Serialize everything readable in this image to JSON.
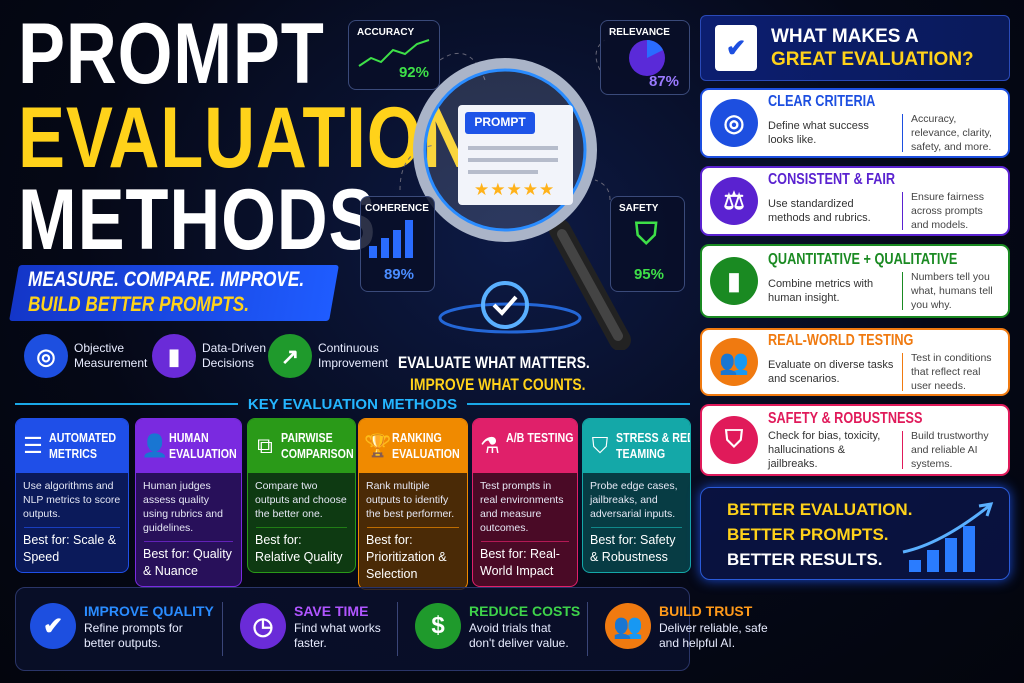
{
  "title": {
    "line1": "PROMPT",
    "line2": "EVALUATION",
    "line3": "METHODS"
  },
  "banner": {
    "line1": "MEASURE. COMPARE. IMPROVE.",
    "line2": "BUILD BETTER PROMPTS."
  },
  "features": [
    {
      "icon": "target-icon",
      "label1": "Objective",
      "label2": "Measurement",
      "color": "#1d4fe0"
    },
    {
      "icon": "bar-chart-icon",
      "label1": "Data-Driven",
      "label2": "Decisions",
      "color": "#6a2bd8"
    },
    {
      "icon": "trend-up-icon",
      "label1": "Continuous",
      "label2": "Improvement",
      "color": "#1f9a2c"
    }
  ],
  "metrics": {
    "accuracy": {
      "label": "ACCURACY",
      "value": "92%"
    },
    "relevance": {
      "label": "RELEVANCE",
      "value": "87%"
    },
    "coherence": {
      "label": "COHERENCE",
      "value": "89%"
    },
    "safety": {
      "label": "SAFETY",
      "value": "95%"
    }
  },
  "magnifier": {
    "badge": "PROMPT",
    "stars": "★★★★★"
  },
  "tagline": {
    "line1": "EVALUATE WHAT MATTERS.",
    "line2": "IMPROVE WHAT COUNTS."
  },
  "methods_heading": "KEY EVALUATION METHODS",
  "methods": [
    {
      "icon": "checklist-icon",
      "l1": "AUTOMATED",
      "l2": "METRICS",
      "desc": "Use algorithms and NLP metrics to score outputs.",
      "best": "Best for: Scale & Speed",
      "color": "#1f4fe8",
      "bg": "#0b1a5a"
    },
    {
      "icon": "person-icon",
      "l1": "HUMAN",
      "l2": "EVALUATION",
      "desc": "Human judges assess quality using rubrics and guidelines.",
      "best": "Best for: Quality & Nuance",
      "color": "#7a2ae0",
      "bg": "#28105a"
    },
    {
      "icon": "compare-icon",
      "l1": "PAIRWISE",
      "l2": "COMPARISON",
      "desc": "Compare two outputs and choose the better one.",
      "best": "Best for: Relative Quality",
      "color": "#2a9a18",
      "bg": "#0e3a12"
    },
    {
      "icon": "trophy-icon",
      "l1": "RANKING",
      "l2": "EVALUATION",
      "desc": "Rank multiple outputs to identify the best performer.",
      "best": "Best for: Prioritization & Selection",
      "color": "#f08a00",
      "bg": "#4a2a06"
    },
    {
      "icon": "flask-icon",
      "l1": "A/B TESTING",
      "l2": "",
      "desc": "Test prompts in real environments and measure outcomes.",
      "best": "Best for: Real-World Impact",
      "color": "#e0206a",
      "bg": "#4a0a26"
    },
    {
      "icon": "shield-icon",
      "l1": "STRESS & RED",
      "l2": "TEAMING",
      "desc": "Probe edge cases, jailbreaks, and adversarial inputs.",
      "best": "Best for: Safety & Robustness",
      "color": "#14a8a8",
      "bg": "#073c44"
    }
  ],
  "benefits": [
    {
      "icon": "check-circle-icon",
      "title": "IMPROVE QUALITY",
      "desc": "Refine prompts for better outputs.",
      "color": "#2a8cff",
      "bg": "#1d4fe0"
    },
    {
      "icon": "clock-icon",
      "title": "SAVE TIME",
      "desc": "Find what works faster.",
      "color": "#b055ff",
      "bg": "#6a2bd8"
    },
    {
      "icon": "dollar-icon",
      "title": "REDUCE COSTS",
      "desc": "Avoid trials that don't deliver value.",
      "color": "#3ed34a",
      "bg": "#1f9a2c"
    },
    {
      "icon": "people-icon",
      "title": "BUILD TRUST",
      "desc": "Deliver reliable, safe and helpful AI.",
      "color": "#ff9a1a",
      "bg": "#f07a10"
    }
  ],
  "right_header": {
    "line1": "WHAT MAKES A",
    "line2": "GREAT EVALUATION?"
  },
  "criteria": [
    {
      "icon": "target-icon",
      "title": "CLEAR CRITERIA",
      "desc": "Define what success looks like.",
      "note": "Accuracy, relevance, clarity, safety, and more.",
      "color": "#1d4fe0"
    },
    {
      "icon": "scales-icon",
      "title": "CONSISTENT & FAIR",
      "desc": "Use standardized methods and rubrics.",
      "note": "Ensure fairness across prompts and models.",
      "color": "#5a22d0"
    },
    {
      "icon": "bar-chart-icon",
      "title": "QUANTITATIVE + QUALITATIVE",
      "desc": "Combine metrics with human insight.",
      "note": "Numbers tell you what, humans tell you why.",
      "color": "#1a8a22"
    },
    {
      "icon": "people-icon",
      "title": "REAL-WORLD TESTING",
      "desc": "Evaluate on diverse tasks and scenarios.",
      "note": "Test in conditions that reflect real user needs.",
      "color": "#f07a10"
    },
    {
      "icon": "shield-check-icon",
      "title": "SAFETY & ROBUSTNESS",
      "desc": "Check for bias, toxicity, hallucinations & jailbreaks.",
      "note": "Build trustworthy and reliable AI systems.",
      "color": "#e01a5a"
    }
  ],
  "closing": {
    "line1": "BETTER EVALUATION.",
    "line2": "BETTER PROMPTS.",
    "line3": "BETTER RESULTS."
  }
}
